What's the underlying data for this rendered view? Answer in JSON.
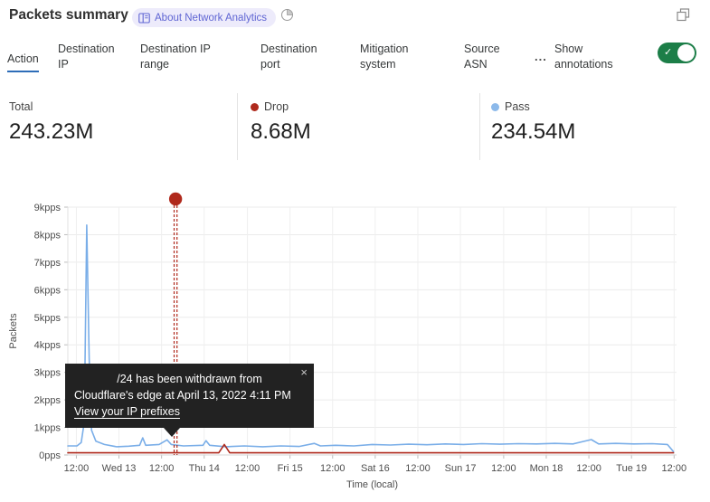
{
  "header": {
    "title": "Packets summary",
    "badge_label": "About Network Analytics"
  },
  "tabs": {
    "items": [
      {
        "label": "Action",
        "active": true
      },
      {
        "label": "Destination IP",
        "active": false
      },
      {
        "label": "Destination IP range",
        "active": false
      },
      {
        "label": "Destination port",
        "active": false
      },
      {
        "label": "Mitigation system",
        "active": false
      },
      {
        "label": "Source ASN",
        "active": false
      }
    ],
    "overflow_label": "...",
    "annotations_label": "Show annotations",
    "annotations_toggle_state": "on"
  },
  "stats": [
    {
      "label": "Total",
      "value": "243.23M",
      "dot_color": ""
    },
    {
      "label": "Drop",
      "value": "8.68M",
      "dot_color": "#af2a1d"
    },
    {
      "label": "Pass",
      "value": "234.54M",
      "dot_color": "#8cb9ea"
    }
  ],
  "tooltip": {
    "line1": "/24 has been withdrawn from",
    "line2": "Cloudflare's edge at April 13, 2022 4:11 PM",
    "link_label": "View your IP prefixes",
    "close_glyph": "×"
  },
  "chart_data": {
    "type": "line",
    "title": "",
    "xlabel": "Time (local)",
    "ylabel": "Packets",
    "ylim": [
      0,
      9
    ],
    "y_ticks": [
      "9kpps",
      "8kpps",
      "7kpps",
      "6kpps",
      "5kpps",
      "4kpps",
      "3kpps",
      "2kpps",
      "1kpps",
      "0pps"
    ],
    "x_ticks": [
      {
        "pos": 0.014,
        "label": "12:00"
      },
      {
        "pos": 0.084,
        "label": "Wed 13"
      },
      {
        "pos": 0.154,
        "label": "12:00"
      },
      {
        "pos": 0.224,
        "label": "Thu 14"
      },
      {
        "pos": 0.295,
        "label": "12:00"
      },
      {
        "pos": 0.365,
        "label": "Fri 15"
      },
      {
        "pos": 0.435,
        "label": "12:00"
      },
      {
        "pos": 0.505,
        "label": "Sat 16"
      },
      {
        "pos": 0.575,
        "label": "12:00"
      },
      {
        "pos": 0.645,
        "label": "Sun 17"
      },
      {
        "pos": 0.716,
        "label": "12:00"
      },
      {
        "pos": 0.786,
        "label": "Mon 18"
      },
      {
        "pos": 0.856,
        "label": "12:00"
      },
      {
        "pos": 0.926,
        "label": "Tue 19"
      },
      {
        "pos": 0.996,
        "label": "12:00"
      }
    ],
    "annotation": {
      "pos": 0.177,
      "color": "#b0291c",
      "note": "IP prefix withdrawal, April 13 2022 4:11 PM"
    },
    "series": [
      {
        "name": "Pass",
        "color": "#7aaee8",
        "unit": "kpps",
        "points": [
          [
            0,
            0.33
          ],
          [
            0.015,
            0.33
          ],
          [
            0.022,
            0.45
          ],
          [
            0.027,
            1.2
          ],
          [
            0.031,
            8.35
          ],
          [
            0.035,
            3.5
          ],
          [
            0.039,
            0.9
          ],
          [
            0.046,
            0.5
          ],
          [
            0.06,
            0.38
          ],
          [
            0.08,
            0.3
          ],
          [
            0.1,
            0.32
          ],
          [
            0.118,
            0.35
          ],
          [
            0.123,
            0.62
          ],
          [
            0.128,
            0.35
          ],
          [
            0.15,
            0.38
          ],
          [
            0.163,
            0.55
          ],
          [
            0.17,
            0.38
          ],
          [
            0.19,
            0.33
          ],
          [
            0.222,
            0.35
          ],
          [
            0.227,
            0.52
          ],
          [
            0.233,
            0.35
          ],
          [
            0.26,
            0.3
          ],
          [
            0.29,
            0.33
          ],
          [
            0.32,
            0.3
          ],
          [
            0.35,
            0.33
          ],
          [
            0.38,
            0.31
          ],
          [
            0.405,
            0.42
          ],
          [
            0.415,
            0.33
          ],
          [
            0.44,
            0.35
          ],
          [
            0.47,
            0.33
          ],
          [
            0.5,
            0.38
          ],
          [
            0.53,
            0.36
          ],
          [
            0.56,
            0.39
          ],
          [
            0.59,
            0.37
          ],
          [
            0.62,
            0.4
          ],
          [
            0.65,
            0.38
          ],
          [
            0.68,
            0.41
          ],
          [
            0.71,
            0.39
          ],
          [
            0.74,
            0.41
          ],
          [
            0.77,
            0.4
          ],
          [
            0.8,
            0.42
          ],
          [
            0.83,
            0.4
          ],
          [
            0.86,
            0.56
          ],
          [
            0.872,
            0.4
          ],
          [
            0.9,
            0.42
          ],
          [
            0.93,
            0.4
          ],
          [
            0.96,
            0.41
          ],
          [
            0.985,
            0.38
          ],
          [
            0.995,
            0.12
          ]
        ]
      },
      {
        "name": "Drop",
        "color": "#af2a1d",
        "unit": "kpps",
        "points": [
          [
            0,
            0.08
          ],
          [
            0.1,
            0.08
          ],
          [
            0.2,
            0.08
          ],
          [
            0.248,
            0.08
          ],
          [
            0.257,
            0.38
          ],
          [
            0.266,
            0.08
          ],
          [
            0.35,
            0.08
          ],
          [
            0.5,
            0.08
          ],
          [
            0.65,
            0.08
          ],
          [
            0.8,
            0.08
          ],
          [
            0.995,
            0.08
          ]
        ]
      }
    ]
  },
  "colors": {
    "accent_blue": "#2e6db8",
    "toggle_green": "#1c7e48",
    "drop_red": "#af2a1d",
    "pass_blue": "#7aaee8",
    "badge_purple": "#5f65d3"
  }
}
